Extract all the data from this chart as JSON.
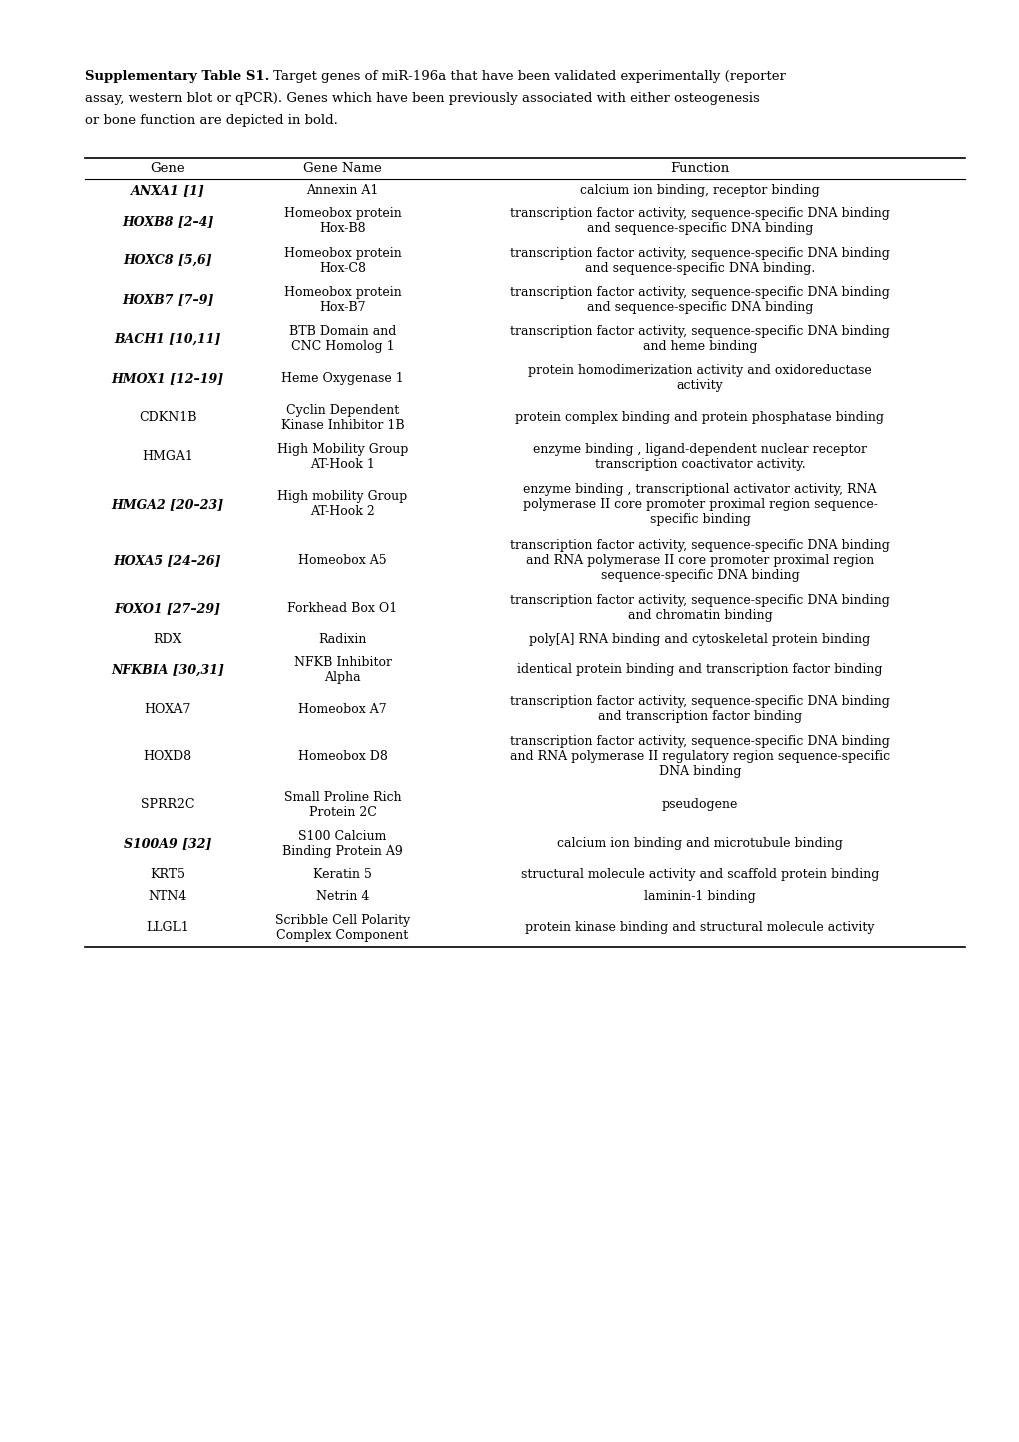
{
  "caption_bold": "Supplementary Table S1.",
  "caption_rest_line1": " Target genes of miR-196a that have been validated experimentally (reporter",
  "caption_line2": "assay, western blot or qPCR). Genes which have been previously associated with either osteogenesis",
  "caption_line3": "or bone function are depicted in bold.",
  "headers": [
    "Gene",
    "Gene Name",
    "Function"
  ],
  "rows": [
    {
      "gene": "ANXA1 [1]",
      "gene_italic": true,
      "gene_bold": true,
      "gene_name": "Annexin A1",
      "function": "calcium ion binding, receptor binding"
    },
    {
      "gene": "HOXB8 [2–4]",
      "gene_italic": true,
      "gene_bold": true,
      "gene_name": "Homeobox protein\nHox-B8",
      "function": "transcription factor activity, sequence-specific DNA binding\nand sequence-specific DNA binding"
    },
    {
      "gene": "HOXC8 [5,6]",
      "gene_italic": true,
      "gene_bold": true,
      "gene_name": "Homeobox protein\nHox-C8",
      "function": "transcription factor activity, sequence-specific DNA binding\nand sequence-specific DNA binding."
    },
    {
      "gene": "HOXB7 [7–9]",
      "gene_italic": true,
      "gene_bold": true,
      "gene_name": "Homeobox protein\nHox-B7",
      "function": "transcription factor activity, sequence-specific DNA binding\nand sequence-specific DNA binding"
    },
    {
      "gene": "BACH1 [10,11]",
      "gene_italic": true,
      "gene_bold": true,
      "gene_name": "BTB Domain and\nCNC Homolog 1",
      "function": "transcription factor activity, sequence-specific DNA binding\nand heme binding"
    },
    {
      "gene": "HMOX1 [12–19]",
      "gene_italic": true,
      "gene_bold": true,
      "gene_name": "Heme Oxygenase 1",
      "function": "protein homodimerization activity and oxidoreductase\nactivity"
    },
    {
      "gene": "CDKN1B",
      "gene_italic": false,
      "gene_bold": false,
      "gene_name": "Cyclin Dependent\nKinase Inhibitor 1B",
      "function": "protein complex binding and protein phosphatase binding"
    },
    {
      "gene": "HMGA1",
      "gene_italic": false,
      "gene_bold": false,
      "gene_name": "High Mobility Group\nAT-Hook 1",
      "function": "enzyme binding , ligand-dependent nuclear receptor\ntranscription coactivator activity."
    },
    {
      "gene": "HMGA2 [20–23]",
      "gene_italic": true,
      "gene_bold": true,
      "gene_name": "High mobility Group\nAT-Hook 2",
      "function": "enzyme binding , transcriptional activator activity, RNA\npolymerase II core promoter proximal region sequence-\nspecific binding"
    },
    {
      "gene": "HOXA5 [24–26]",
      "gene_italic": true,
      "gene_bold": true,
      "gene_name": "Homeobox A5",
      "function": "transcription factor activity, sequence-specific DNA binding\nand RNA polymerase II core promoter proximal region\nsequence-specific DNA binding"
    },
    {
      "gene": "FOXO1 [27–29]",
      "gene_italic": true,
      "gene_bold": true,
      "gene_name": "Forkhead Box O1",
      "function": "transcription factor activity, sequence-specific DNA binding\nand chromatin binding"
    },
    {
      "gene": "RDX",
      "gene_italic": false,
      "gene_bold": false,
      "gene_name": "Radixin",
      "function": "poly[A] RNA binding and cytoskeletal protein binding"
    },
    {
      "gene": "NFKBIA [30,31]",
      "gene_italic": true,
      "gene_bold": true,
      "gene_name": "NFKB Inhibitor\nAlpha",
      "function": "identical protein binding and transcription factor binding"
    },
    {
      "gene": "HOXA7",
      "gene_italic": false,
      "gene_bold": false,
      "gene_name": "Homeobox A7",
      "function": "transcription factor activity, sequence-specific DNA binding\nand transcription factor binding"
    },
    {
      "gene": "HOXD8",
      "gene_italic": false,
      "gene_bold": false,
      "gene_name": "Homeobox D8",
      "function": "transcription factor activity, sequence-specific DNA binding\nand RNA polymerase II regulatory region sequence-specific\nDNA binding"
    },
    {
      "gene": "SPRR2C",
      "gene_italic": false,
      "gene_bold": false,
      "gene_name": "Small Proline Rich\nProtein 2C",
      "function": "pseudogene"
    },
    {
      "gene": "S100A9 [32]",
      "gene_italic": true,
      "gene_bold": true,
      "gene_name": "S100 Calcium\nBinding Protein A9",
      "function": "calcium ion binding and microtubule binding"
    },
    {
      "gene": "KRT5",
      "gene_italic": false,
      "gene_bold": false,
      "gene_name": "Keratin 5",
      "function": "structural molecule activity and scaffold protein binding"
    },
    {
      "gene": "NTN4",
      "gene_italic": false,
      "gene_bold": false,
      "gene_name": "Netrin 4",
      "function": "laminin-1 binding"
    },
    {
      "gene": "LLGL1",
      "gene_italic": false,
      "gene_bold": false,
      "gene_name": "Scribble Cell Polarity\nComplex Component",
      "function": "protein kinase binding and structural molecule activity"
    }
  ],
  "fig_width": 10.2,
  "fig_height": 14.42,
  "font_size": 9.0,
  "header_font_size": 9.5,
  "caption_font_size": 9.5,
  "background_color": "#ffffff",
  "text_color": "#000000",
  "line_color": "#000000"
}
